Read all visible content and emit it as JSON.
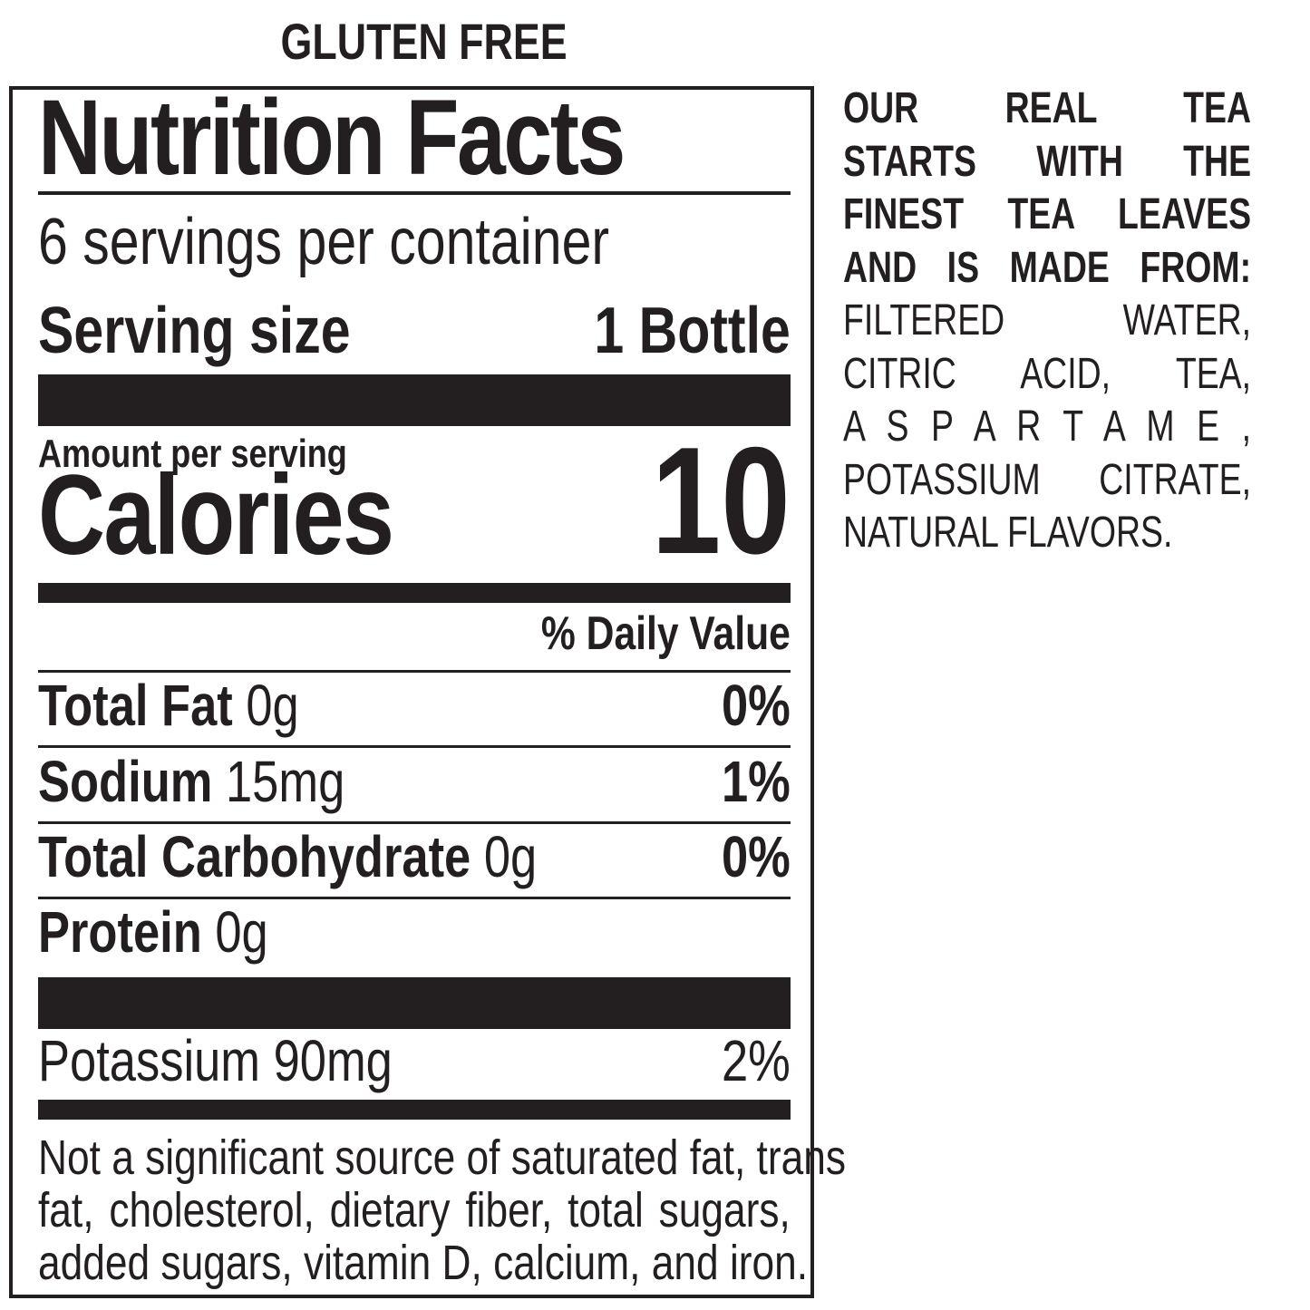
{
  "header": {
    "gluten_free": "GLUTEN FREE"
  },
  "label": {
    "title": "Nutrition Facts",
    "servings_per_container": "6 servings per container",
    "serving_size_label": "Serving size",
    "serving_size_value": "1 Bottle",
    "amount_per_serving": "Amount per serving",
    "calories_label": "Calories",
    "calories_value": "10",
    "daily_value_header": "% Daily Value",
    "nutrients": [
      {
        "name": "Total Fat",
        "amount": "0g",
        "dv": "0%"
      },
      {
        "name": "Sodium",
        "amount": "15mg",
        "dv": "1%"
      },
      {
        "name": "Total Carbohydrate",
        "amount": "0g",
        "dv": "0%"
      },
      {
        "name": "Protein",
        "amount": "0g",
        "dv": ""
      }
    ],
    "potassium": {
      "name": "Potassium",
      "amount": "90mg",
      "dv": "2%"
    },
    "footnote_lines": [
      "Not a significant source of saturated fat, trans",
      "fat, cholesterol, dietary fiber, total sugars,",
      "added sugars, vitamin D, calcium, and iron."
    ]
  },
  "ingredients": {
    "intro_lines": [
      "OUR REAL TEA",
      "STARTS WITH THE",
      "FINEST TEA LEAVES",
      "AND IS MADE FROM:"
    ],
    "list_lines": [
      "FILTERED WATER,",
      "CITRIC ACID, TEA,",
      "A S P A R T A M E ,",
      "POTASSIUM CITRATE,",
      "NATURAL FLAVORS."
    ]
  }
}
